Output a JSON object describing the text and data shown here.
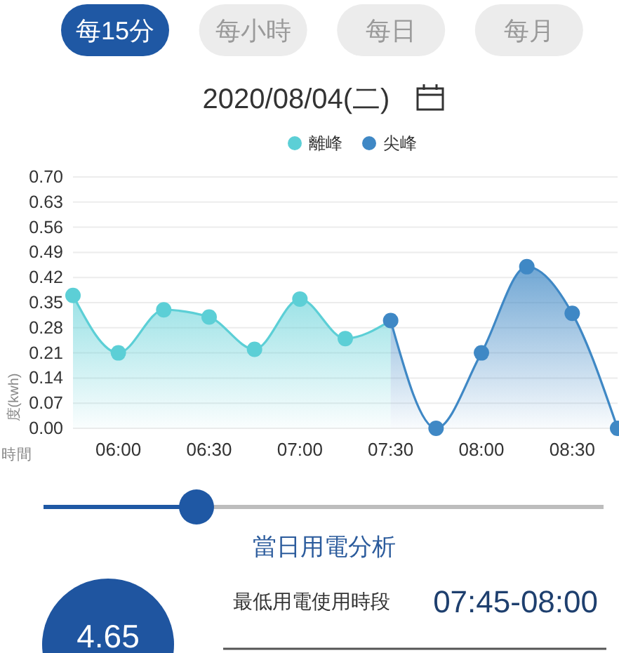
{
  "chart_data": [
    {
      "type": "area",
      "title": "2020/08/04(二)",
      "annotations": [
        "每15分",
        "每小時",
        "每日",
        "每月"
      ],
      "xlabel": "時間",
      "ylabel": "度(kwh)",
      "legend": "top",
      "marker": "circle",
      "grid": "y",
      "xlim": [
        5.75,
        8.75
      ],
      "xticks": [
        {
          "value": 6,
          "label": "06:00"
        },
        {
          "value": 6.5,
          "label": "06:30"
        },
        {
          "value": 7,
          "label": "07:00"
        },
        {
          "value": 7.5,
          "label": "07:30"
        },
        {
          "value": 8,
          "label": "08:00"
        },
        {
          "value": 8.5,
          "label": "08:30"
        }
      ],
      "ylim": [
        0,
        0.7
      ],
      "yticks": [
        {
          "value": 0,
          "label": "0.00"
        },
        0.07,
        0.14,
        0.21,
        0.28,
        0.35,
        0.42,
        0.49,
        0.56,
        0.63,
        {
          "value": 0.7,
          "label": "0.70"
        }
      ],
      "series": [
        {
          "name": "離峰",
          "color": "#5ccfd6",
          "x": [
            5.75,
            6,
            6.25,
            6.5,
            6.75,
            7,
            7.25,
            7.5
          ],
          "values": [
            0.37,
            0.21,
            0.33,
            0.31,
            0.22,
            0.36,
            0.25,
            0.3
          ]
        },
        {
          "name": "尖峰",
          "color": "#3f88c5",
          "x": [
            7.5,
            7.75,
            8,
            8.25,
            8.5,
            8.75
          ],
          "values": [
            0.3,
            0,
            0.21,
            0.45,
            0.32,
            0
          ]
        }
      ]
    },
    {
      "type": "other",
      "title": "當日用電分析",
      "annotations": [
        "4.65",
        "最低用電使用時段",
        "07:45-08:00"
      ]
    }
  ]
}
